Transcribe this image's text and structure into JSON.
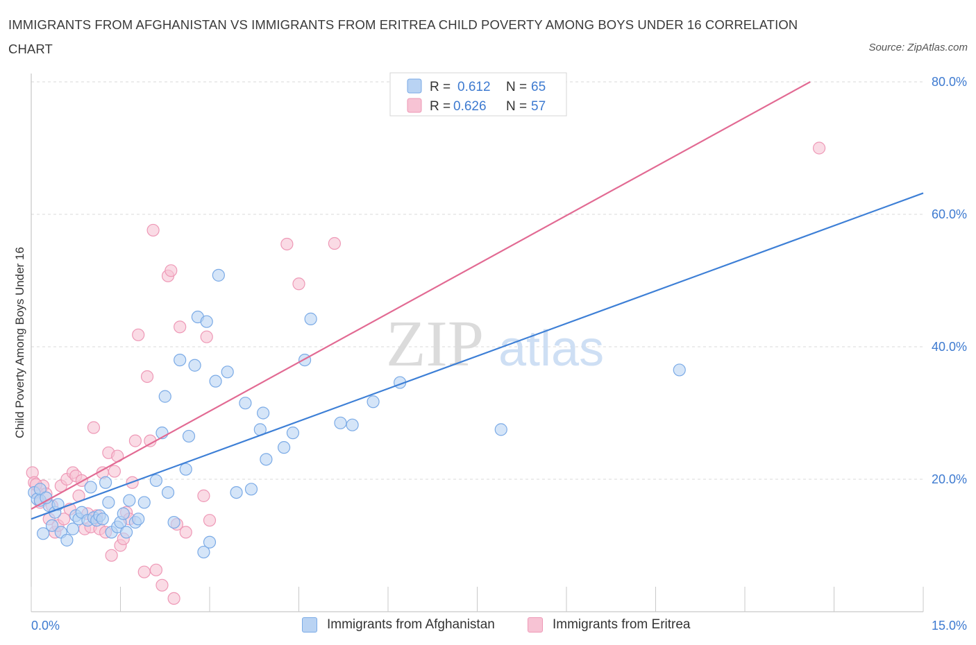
{
  "title": "IMMIGRANTS FROM AFGHANISTAN VS IMMIGRANTS FROM ERITREA CHILD POVERTY AMONG BOYS UNDER 16 CORRELATION CHART",
  "source": "Source: ZipAtlas.com",
  "watermark": {
    "zip": "ZIP",
    "atlas": "atlas"
  },
  "colors": {
    "blue": "#3d7fd6",
    "blue_fill": "#b9d3f3",
    "blue_stroke": "#7aaae6",
    "pink": "#e26a93",
    "pink_fill": "#f7c3d4",
    "pink_stroke": "#ee98b6",
    "axis_label": "#3d7ad0",
    "grid": "#d9d9d9"
  },
  "legend": {
    "rows": [
      {
        "r_label": "R = ",
        "r_value": "0.612",
        "n_label": "N = ",
        "n_value": "65"
      },
      {
        "r_label": "R = ",
        "r_value": "0.626",
        "n_label": "N = ",
        "n_value": "57"
      }
    ]
  },
  "chart_data": {
    "type": "scatter",
    "title": "IMMIGRANTS FROM AFGHANISTAN VS IMMIGRANTS FROM ERITREA CHILD POVERTY AMONG BOYS UNDER 16 CORRELATION CHART",
    "xlabel": "",
    "ylabel": "Child Poverty Among Boys Under 16",
    "xlim": [
      0,
      15
    ],
    "ylim": [
      0,
      80
    ],
    "x_tick_labels": [
      "0.0%",
      "15.0%"
    ],
    "y_tick_labels": [
      "20.0%",
      "40.0%",
      "60.0%",
      "80.0%"
    ],
    "y_ticks": [
      20,
      40,
      60,
      80
    ],
    "grid": true,
    "legend_position": "top-center",
    "series": [
      {
        "name": "Immigrants from Afghanistan",
        "color": "#3d7fd6",
        "trend": {
          "x": [
            0,
            15
          ],
          "y": [
            14.0,
            63.2
          ]
        },
        "points": [
          [
            0.05,
            18.0
          ],
          [
            0.1,
            17.0
          ],
          [
            0.15,
            18.5
          ],
          [
            0.2,
            11.8
          ],
          [
            0.3,
            16.0
          ],
          [
            0.35,
            13.0
          ],
          [
            0.4,
            15.0
          ],
          [
            0.45,
            16.2
          ],
          [
            0.5,
            12.0
          ],
          [
            0.6,
            10.8
          ],
          [
            0.7,
            12.5
          ],
          [
            0.75,
            14.5
          ],
          [
            0.8,
            14.0
          ],
          [
            0.85,
            15.0
          ],
          [
            0.95,
            13.8
          ],
          [
            1.0,
            18.8
          ],
          [
            1.05,
            14.2
          ],
          [
            1.1,
            13.8
          ],
          [
            1.15,
            14.5
          ],
          [
            1.2,
            14.0
          ],
          [
            1.25,
            19.5
          ],
          [
            1.3,
            16.5
          ],
          [
            1.35,
            12.0
          ],
          [
            1.45,
            12.8
          ],
          [
            1.5,
            13.5
          ],
          [
            1.55,
            14.8
          ],
          [
            1.6,
            12.0
          ],
          [
            1.65,
            16.8
          ],
          [
            1.75,
            13.5
          ],
          [
            1.8,
            14.0
          ],
          [
            1.9,
            16.5
          ],
          [
            2.1,
            19.8
          ],
          [
            2.2,
            27.0
          ],
          [
            2.25,
            32.5
          ],
          [
            2.3,
            18.0
          ],
          [
            2.4,
            13.5
          ],
          [
            2.5,
            38.0
          ],
          [
            2.6,
            21.5
          ],
          [
            2.65,
            26.5
          ],
          [
            2.75,
            37.2
          ],
          [
            2.8,
            44.5
          ],
          [
            2.9,
            9.0
          ],
          [
            2.95,
            43.8
          ],
          [
            3.0,
            10.5
          ],
          [
            3.1,
            34.8
          ],
          [
            3.15,
            50.8
          ],
          [
            3.3,
            36.2
          ],
          [
            3.45,
            18.0
          ],
          [
            3.6,
            31.5
          ],
          [
            3.7,
            18.5
          ],
          [
            3.85,
            27.5
          ],
          [
            3.9,
            30.0
          ],
          [
            3.95,
            23.0
          ],
          [
            4.25,
            24.8
          ],
          [
            4.4,
            27.0
          ],
          [
            4.6,
            38.0
          ],
          [
            4.7,
            44.2
          ],
          [
            5.2,
            28.5
          ],
          [
            5.4,
            28.2
          ],
          [
            5.75,
            31.7
          ],
          [
            6.2,
            34.6
          ],
          [
            7.9,
            27.5
          ],
          [
            10.9,
            36.5
          ],
          [
            0.15,
            16.8
          ],
          [
            0.25,
            17.2
          ]
        ]
      },
      {
        "name": "Immigrants from Eritrea",
        "color": "#e26a93",
        "trend": {
          "x": [
            0,
            13.1
          ],
          "y": [
            15.5,
            80.0
          ]
        },
        "points": [
          [
            0.02,
            21.0
          ],
          [
            0.05,
            19.5
          ],
          [
            0.1,
            18.0
          ],
          [
            0.15,
            16.5
          ],
          [
            0.2,
            19.0
          ],
          [
            0.3,
            14.0
          ],
          [
            0.35,
            16.0
          ],
          [
            0.4,
            12.0
          ],
          [
            0.45,
            13.0
          ],
          [
            0.5,
            19.0
          ],
          [
            0.55,
            14.0
          ],
          [
            0.6,
            20.0
          ],
          [
            0.65,
            15.5
          ],
          [
            0.7,
            21.0
          ],
          [
            0.75,
            20.5
          ],
          [
            0.8,
            17.5
          ],
          [
            0.85,
            19.8
          ],
          [
            0.9,
            12.5
          ],
          [
            0.95,
            14.8
          ],
          [
            1.0,
            12.8
          ],
          [
            1.05,
            27.8
          ],
          [
            1.1,
            14.5
          ],
          [
            1.15,
            12.5
          ],
          [
            1.2,
            21.0
          ],
          [
            1.25,
            12.0
          ],
          [
            1.3,
            24.0
          ],
          [
            1.35,
            8.5
          ],
          [
            1.4,
            21.2
          ],
          [
            1.45,
            23.5
          ],
          [
            1.5,
            10.0
          ],
          [
            1.55,
            11.0
          ],
          [
            1.6,
            15.0
          ],
          [
            1.65,
            14.0
          ],
          [
            1.7,
            19.5
          ],
          [
            1.75,
            25.8
          ],
          [
            1.8,
            41.8
          ],
          [
            1.9,
            6.0
          ],
          [
            1.95,
            35.5
          ],
          [
            2.0,
            25.8
          ],
          [
            2.05,
            57.6
          ],
          [
            2.1,
            6.3
          ],
          [
            2.2,
            4.0
          ],
          [
            2.3,
            50.7
          ],
          [
            2.35,
            51.5
          ],
          [
            2.4,
            2.0
          ],
          [
            2.45,
            13.2
          ],
          [
            2.5,
            43.0
          ],
          [
            2.6,
            12.0
          ],
          [
            2.9,
            17.5
          ],
          [
            2.95,
            41.5
          ],
          [
            3.0,
            13.8
          ],
          [
            4.3,
            55.5
          ],
          [
            4.5,
            49.5
          ],
          [
            5.1,
            55.6
          ],
          [
            13.25,
            70.0
          ],
          [
            0.25,
            17.8
          ],
          [
            0.08,
            19.2
          ]
        ]
      }
    ]
  }
}
